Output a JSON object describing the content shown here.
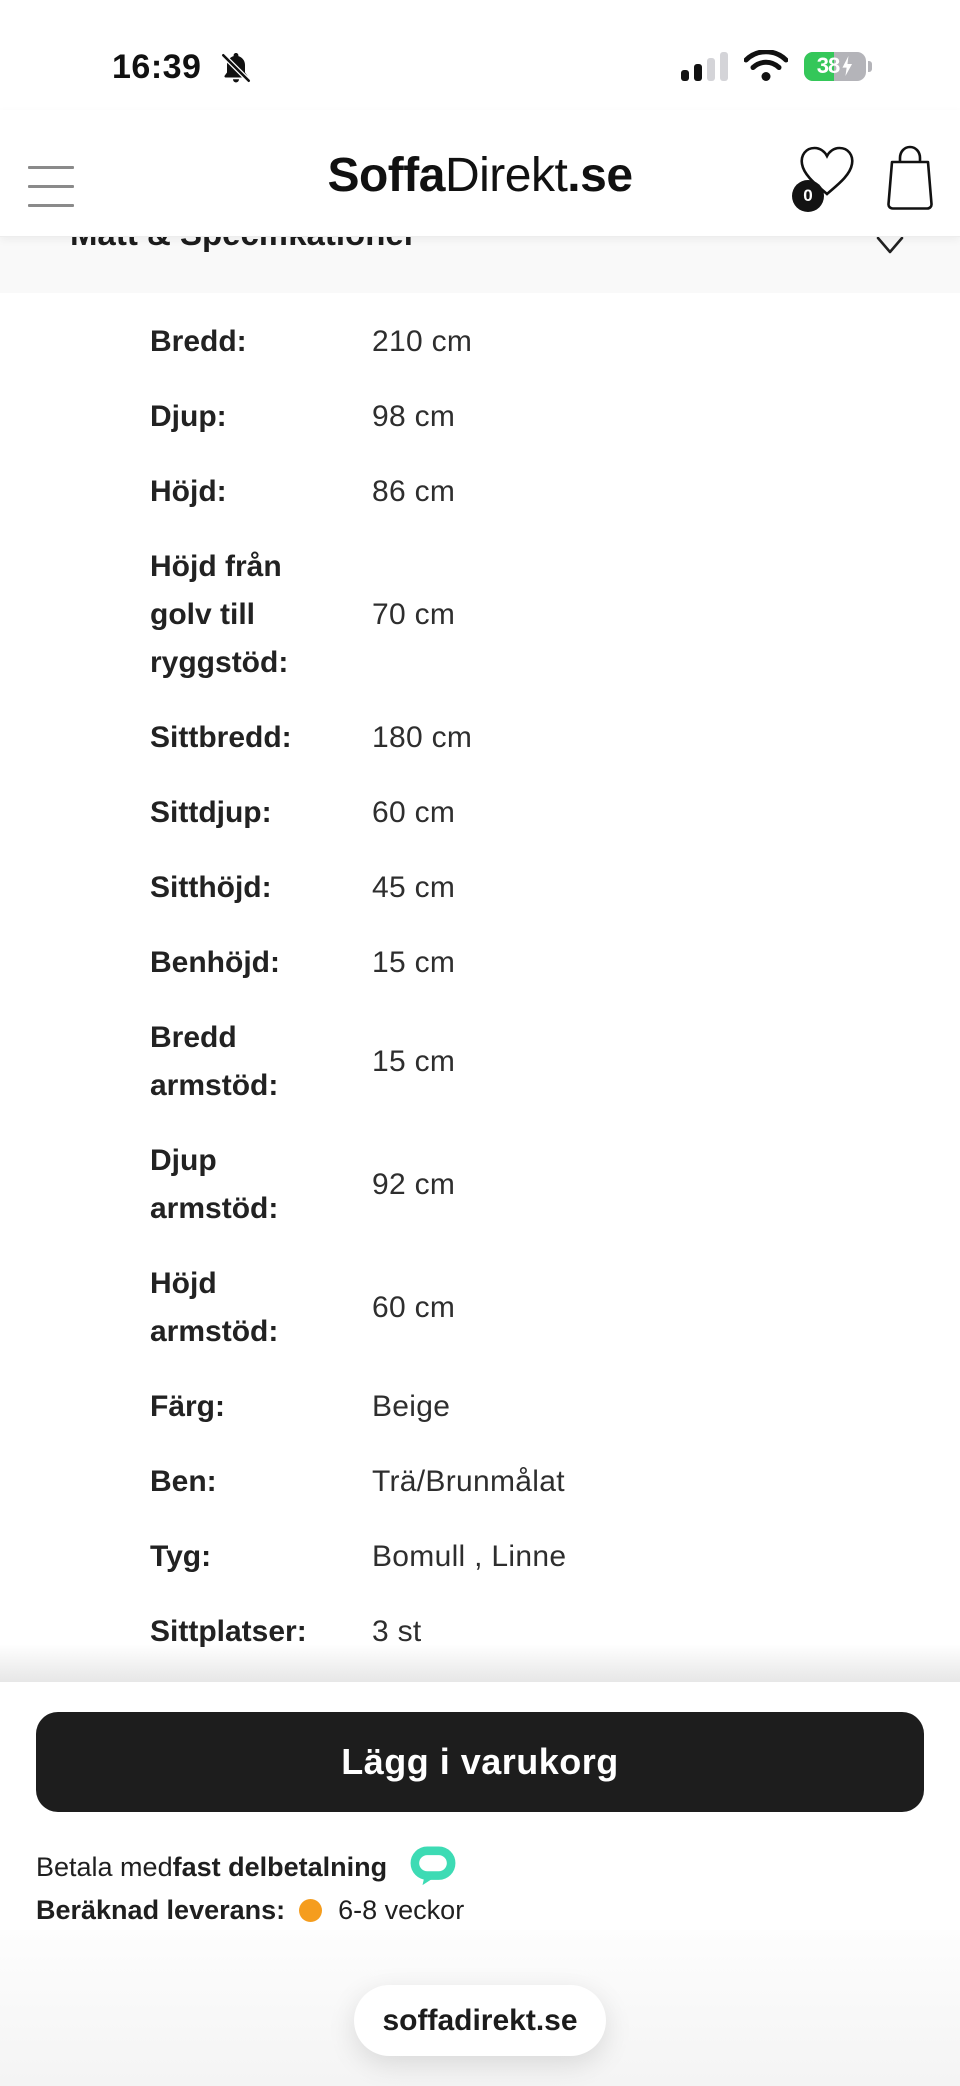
{
  "status_bar": {
    "time": "16:39",
    "battery_percent": "38",
    "icons": {
      "bell": "notifications-muted",
      "cellular": "cellular-signal-2of4",
      "wifi": "wifi-full",
      "battery": "battery-charging"
    }
  },
  "header": {
    "logo_prefix": "Soffa",
    "logo_mid": "Direkt",
    "logo_suffix": ".se",
    "wishlist_count": "0",
    "icons": {
      "menu": "hamburger-menu",
      "wishlist": "heart-outline",
      "cart": "shopping-bag"
    }
  },
  "section": {
    "title": "Mått & Specifikationer",
    "chevron": "chevron-down"
  },
  "specs": {
    "rows": [
      {
        "label": "Bredd:",
        "value": "210 cm"
      },
      {
        "label": "Djup:",
        "value": "98 cm"
      },
      {
        "label": "Höjd:",
        "value": "86 cm"
      },
      {
        "label": "Höjd från golv till ryggstöd:",
        "value": "70 cm"
      },
      {
        "label": "Sittbredd:",
        "value": "180 cm"
      },
      {
        "label": "Sittdjup:",
        "value": "60 cm"
      },
      {
        "label": "Sitthöjd:",
        "value": "45 cm"
      },
      {
        "label": "Benhöjd:",
        "value": "15 cm"
      },
      {
        "label": "Bredd armstöd:",
        "value": "15 cm"
      },
      {
        "label": "Djup armstöd:",
        "value": "92 cm"
      },
      {
        "label": "Höjd armstöd:",
        "value": "60 cm"
      },
      {
        "label": "Färg:",
        "value": "Beige"
      },
      {
        "label": "Ben:",
        "value": "Trä/Brunmålat"
      },
      {
        "label": "Tyg:",
        "value": "Bomull , Linne"
      },
      {
        "label": "Sittplatser:",
        "value": "3 st"
      }
    ]
  },
  "footer": {
    "add_to_cart_label": "Lägg i varukorg",
    "pay_prefix": "Betala med ",
    "pay_bold": "fast delbetalning",
    "pay_icon": "payment-bubble",
    "delivery_label": "Beräknad leverans:",
    "delivery_value": "6-8 veckor",
    "delivery_dot": "status-dot-orange"
  },
  "browser": {
    "url": "soffadirekt.se"
  },
  "colors": {
    "accent_teal": "#3ddbb4",
    "dot_orange": "#f59d1e",
    "button_bg": "#1d1d1d",
    "battery_green": "#34c759",
    "text": "#1d1d1f"
  }
}
